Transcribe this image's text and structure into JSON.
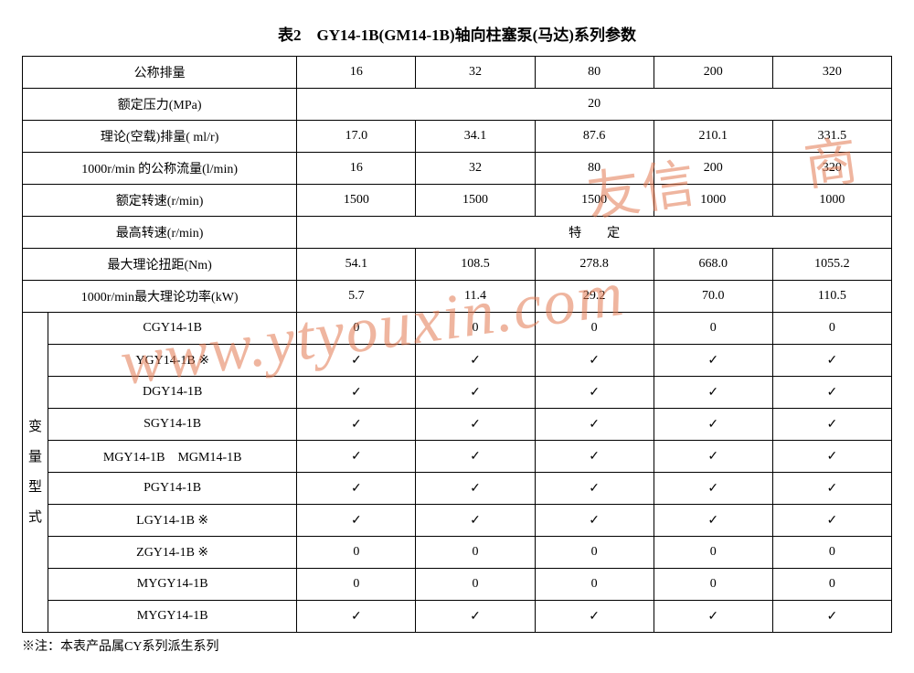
{
  "title": "表2　GY14-1B(GM14-1B)轴向柱塞泵(马达)系列参数",
  "footnote": "※注：本表产品属CY系列派生系列",
  "watermark_url": "www.ytyouxin.com",
  "watermark_cn": "友信　　商　城",
  "params": {
    "r0": {
      "label": "公称排量",
      "v": [
        "16",
        "32",
        "80",
        "200",
        "320"
      ]
    },
    "r1": {
      "label": "额定压力(MPa)",
      "merged": "20"
    },
    "r2": {
      "label": "理论(空载)排量( ml/r)",
      "v": [
        "17.0",
        "34.1",
        "87.6",
        "210.1",
        "331.5"
      ]
    },
    "r3": {
      "label": "1000r/min 的公称流量(l/min)",
      "v": [
        "16",
        "32",
        "80",
        "200",
        "320"
      ]
    },
    "r4": {
      "label": "额定转速(r/min)",
      "v": [
        "1500",
        "1500",
        "1500",
        "1000",
        "1000"
      ]
    },
    "r5": {
      "label": "最高转速(r/min)",
      "merged": "特　　定"
    },
    "r6": {
      "label": "最大理论扭距(Nm)",
      "v": [
        "54.1",
        "108.5",
        "278.8",
        "668.0",
        "1055.2"
      ]
    },
    "r7": {
      "label": "1000r/min最大理论功率(kW)",
      "v": [
        "5.7",
        "11.4",
        "29.2",
        "70.0",
        "110.5"
      ]
    }
  },
  "variants_header": "变\n量\n型\n式",
  "variants": [
    {
      "label": "CGY14-1B",
      "v": [
        "0",
        "0",
        "0",
        "0",
        "0"
      ]
    },
    {
      "label": "YGY14-1B ※",
      "v": [
        "✓",
        "✓",
        "✓",
        "✓",
        "✓"
      ]
    },
    {
      "label": "DGY14-1B",
      "v": [
        "✓",
        "✓",
        "✓",
        "✓",
        "✓"
      ]
    },
    {
      "label": "SGY14-1B",
      "v": [
        "✓",
        "✓",
        "✓",
        "✓",
        "✓"
      ]
    },
    {
      "label": "MGY14-1B　MGM14-1B",
      "v": [
        "✓",
        "✓",
        "✓",
        "✓",
        "✓"
      ]
    },
    {
      "label": "PGY14-1B",
      "v": [
        "✓",
        "✓",
        "✓",
        "✓",
        "✓"
      ]
    },
    {
      "label": "LGY14-1B ※",
      "v": [
        "✓",
        "✓",
        "✓",
        "✓",
        "✓"
      ]
    },
    {
      "label": "ZGY14-1B ※",
      "v": [
        "0",
        "0",
        "0",
        "0",
        "0"
      ]
    },
    {
      "label": "MYGY14-1B",
      "v": [
        "0",
        "0",
        "0",
        "0",
        "0"
      ]
    },
    {
      "label": "MYGY14-1B",
      "v": [
        "✓",
        "✓",
        "✓",
        "✓",
        "✓"
      ]
    }
  ],
  "col_widths": {
    "vert": 28,
    "label": 272,
    "data": 130
  }
}
